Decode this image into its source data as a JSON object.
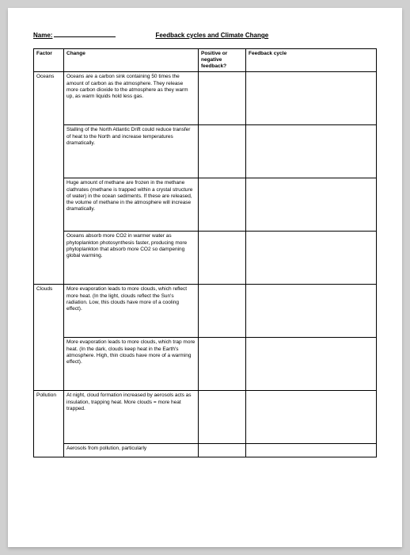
{
  "header": {
    "name_label": "Name:",
    "title": "Feedback cycles and Climate Change"
  },
  "columns": {
    "factor": "Factor",
    "change": "Change",
    "posneg": "Positive or negative feedback?",
    "cycle": "Feedback cycle"
  },
  "rows": [
    {
      "factor": "Oceans",
      "change": "Oceans are a carbon sink containing 50 times the amount of carbon as the atmosphere. They release more carbon dioxide to the atmosphere as they warm up, as warm liquids hold less gas.",
      "rowspan": 4
    },
    {
      "factor": "",
      "change": "Stalling of the North Atlantic Drift could reduce transfer of heat to the North and increase temperatures dramatically."
    },
    {
      "factor": "",
      "change": "Huge amount of methane are frozen in the methane clathrates (methane is trapped within a crystal structure of water) in the ocean sediments. If these are released, the volume of methane in the atmosphere will increase dramatically."
    },
    {
      "factor": "",
      "change": "Oceans absorb more CO2 in warmer water as phytoplankton photosynthesis faster, producing more phytoplankton that absorb more CO2 so dampening global warming."
    },
    {
      "factor": "Clouds",
      "change": "More evaporation leads to more clouds, which reflect more heat. (In the light, clouds reflect the Sun's radiation. Low, this clouds have more of a cooling effect).",
      "rowspan": 2
    },
    {
      "factor": "",
      "change": "More evaporation leads to more clouds, which trap more heat. (In the dark, clouds keep heat in the Earth's atmosphere. High, thin clouds have more of a warming effect)."
    },
    {
      "factor": "Pollution",
      "change": "At night, cloud formation increased by aerosols acts as insulation, trapping heat. More clouds = more heat trapped.",
      "rowspan": 2
    },
    {
      "factor": "",
      "change": "Aerosols from pollution, particularly",
      "short": true
    }
  ]
}
